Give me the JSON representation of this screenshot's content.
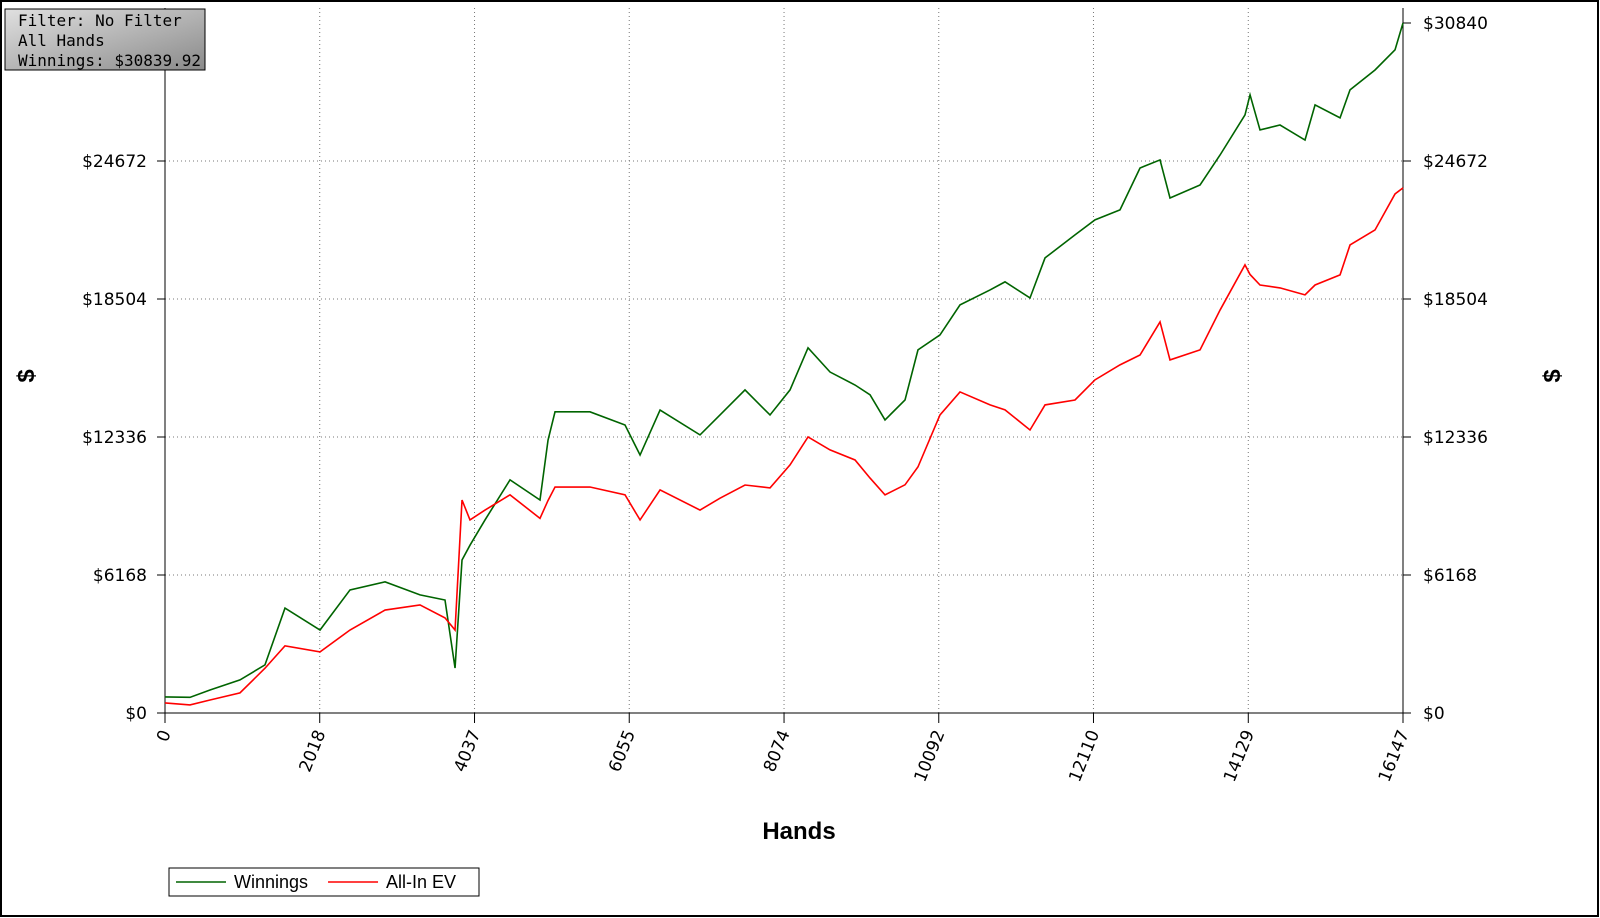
{
  "chart_data": {
    "type": "line",
    "info_box": [
      "Filter: No Filter",
      "All Hands",
      "Winnings: $30839.92"
    ],
    "x_label": "Hands",
    "y_label": "$",
    "y2_label": "$",
    "grid": true,
    "x": [
      0,
      326,
      587,
      978,
      1304,
      1565,
      2022,
      2413,
      2870,
      3326,
      3652,
      3783,
      3874,
      3978,
      4174,
      4500,
      4891,
      4996,
      5087,
      5543,
      6000,
      6196,
      6457,
      6978,
      7239,
      7565,
      7891,
      8152,
      8387,
      8674,
      9000,
      9196,
      9391,
      9652,
      9821,
      10108,
      10369,
      10761,
      10956,
      11282,
      11478,
      11869,
      12130,
      12456,
      12717,
      12978,
      13108,
      13500,
      13761,
      14086,
      14152,
      14282,
      14543,
      14869,
      15000,
      15326,
      15456,
      15782,
      16043,
      16147
    ],
    "series": [
      {
        "name": "Winnings",
        "color": "#006400",
        "values": [
          716,
          700,
          1030,
          1480,
          2150,
          4690,
          3710,
          5500,
          5860,
          5280,
          5050,
          2010,
          6840,
          7500,
          8630,
          10420,
          9520,
          12200,
          13460,
          13460,
          12870,
          11530,
          13540,
          12430,
          13320,
          14440,
          13320,
          14440,
          16320,
          15240,
          14660,
          14220,
          13100,
          13990,
          16230,
          16900,
          18240,
          18910,
          19270,
          18550,
          20340,
          21370,
          22040,
          22490,
          24360,
          24720,
          23020,
          23600,
          24940,
          26730,
          27630,
          26060,
          26280,
          25610,
          27180,
          26600,
          27850,
          28740,
          29640,
          30840
        ]
      },
      {
        "name": "All-In EV",
        "color": "#ff0000",
        "values": [
          450,
          360,
          580,
          900,
          2000,
          3000,
          2730,
          3710,
          4600,
          4830,
          4250,
          3710,
          9520,
          8630,
          9070,
          9750,
          8700,
          9500,
          10100,
          10100,
          9750,
          8630,
          9970,
          9070,
          9600,
          10190,
          10060,
          11090,
          12340,
          11760,
          11310,
          10500,
          9750,
          10200,
          11000,
          13320,
          14350,
          13770,
          13550,
          12650,
          13770,
          13990,
          14890,
          15560,
          16000,
          17480,
          15780,
          16230,
          18010,
          20030,
          19600,
          19130,
          19000,
          18690,
          19130,
          19580,
          20920,
          21590,
          23200,
          23470
        ]
      }
    ],
    "xlim": [
      0,
      16147
    ],
    "xticks": [
      0,
      2018,
      4037,
      6055,
      8074,
      10092,
      12110,
      14129,
      16147
    ],
    "ylim": [
      0,
      30840
    ],
    "yticks": [
      {
        "value": 0,
        "label": "$0"
      },
      {
        "value": 6168,
        "label": "$6168"
      },
      {
        "value": 12336,
        "label": "$12336"
      },
      {
        "value": 18504,
        "label": "$18504"
      },
      {
        "value": 24672,
        "label": "$24672"
      }
    ],
    "y2lim": [
      0,
      30840
    ],
    "y2ticks": [
      {
        "value": 0,
        "label": "$0"
      },
      {
        "value": 6168,
        "label": "$6168"
      },
      {
        "value": 12336,
        "label": "$12336"
      },
      {
        "value": 18504,
        "label": "$18504"
      },
      {
        "value": 24672,
        "label": "$24672"
      },
      {
        "value": 30840,
        "label": "$30840"
      }
    ]
  }
}
